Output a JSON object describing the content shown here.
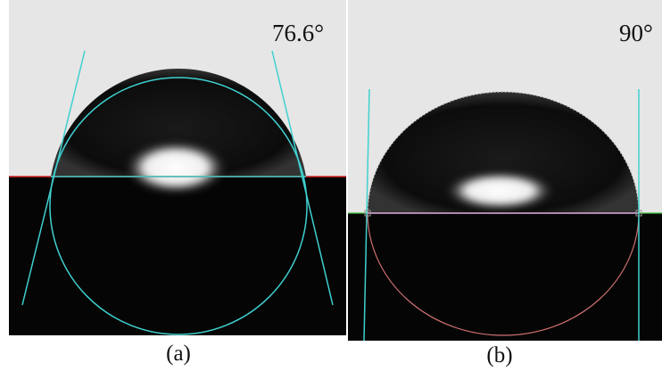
{
  "panels": [
    {
      "angle_label": "76.6°",
      "caption": "(a)"
    },
    {
      "angle_label": "90°",
      "caption": "(b)"
    }
  ]
}
